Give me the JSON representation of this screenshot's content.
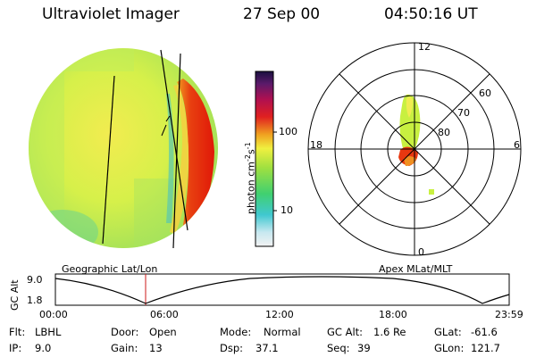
{
  "header": {
    "instrument": "Ultraviolet Imager",
    "date": "27 Sep 00",
    "time": "04:50:16 UT"
  },
  "colorbar": {
    "label": "photon cm",
    "label_sup1": "-2",
    "label_mid": "s",
    "label_sup2": "-1",
    "ticks": [
      "100",
      "10"
    ]
  },
  "polar_plot": {
    "mlt_labels": {
      "top": "12",
      "bottom": "0",
      "left": "18",
      "right": "6"
    },
    "lat_labels": [
      "60",
      "70",
      "80"
    ]
  },
  "projection_labels": {
    "left": "Geographic Lat/Lon",
    "right": "Apex MLat/MLT"
  },
  "altitude_plot": {
    "axis_label": "GC Alt",
    "ymax": "9.0",
    "ymin": "1.8",
    "time_ticks": [
      "00:00",
      "06:00",
      "12:00",
      "18:00",
      "23:59"
    ]
  },
  "info": {
    "filter_label": "Flt:",
    "filter_value": "LBHL",
    "ip_label": "IP:",
    "ip_value": "9.0",
    "door_label": "Door:",
    "door_value": "Open",
    "gain_label": "Gain:",
    "gain_value": "13",
    "mode_label": "Mode:",
    "mode_value": "Normal",
    "dsp_label": "Dsp:",
    "dsp_value": "37.1",
    "gcalt_label": "GC Alt:",
    "gcalt_value": "1.6 Re",
    "seq_label": "Seq:",
    "seq_value": "39",
    "glat_label": "GLat:",
    "glat_value": "-61.6",
    "glon_label": "GLon:",
    "glon_value": "121.7"
  },
  "colors": {
    "disk_base": "#c8f040",
    "disk_bright": "#f0e840",
    "oval_red": "#e01808",
    "oval_orange": "#f09020",
    "marker_red": "#cc1a1a"
  }
}
